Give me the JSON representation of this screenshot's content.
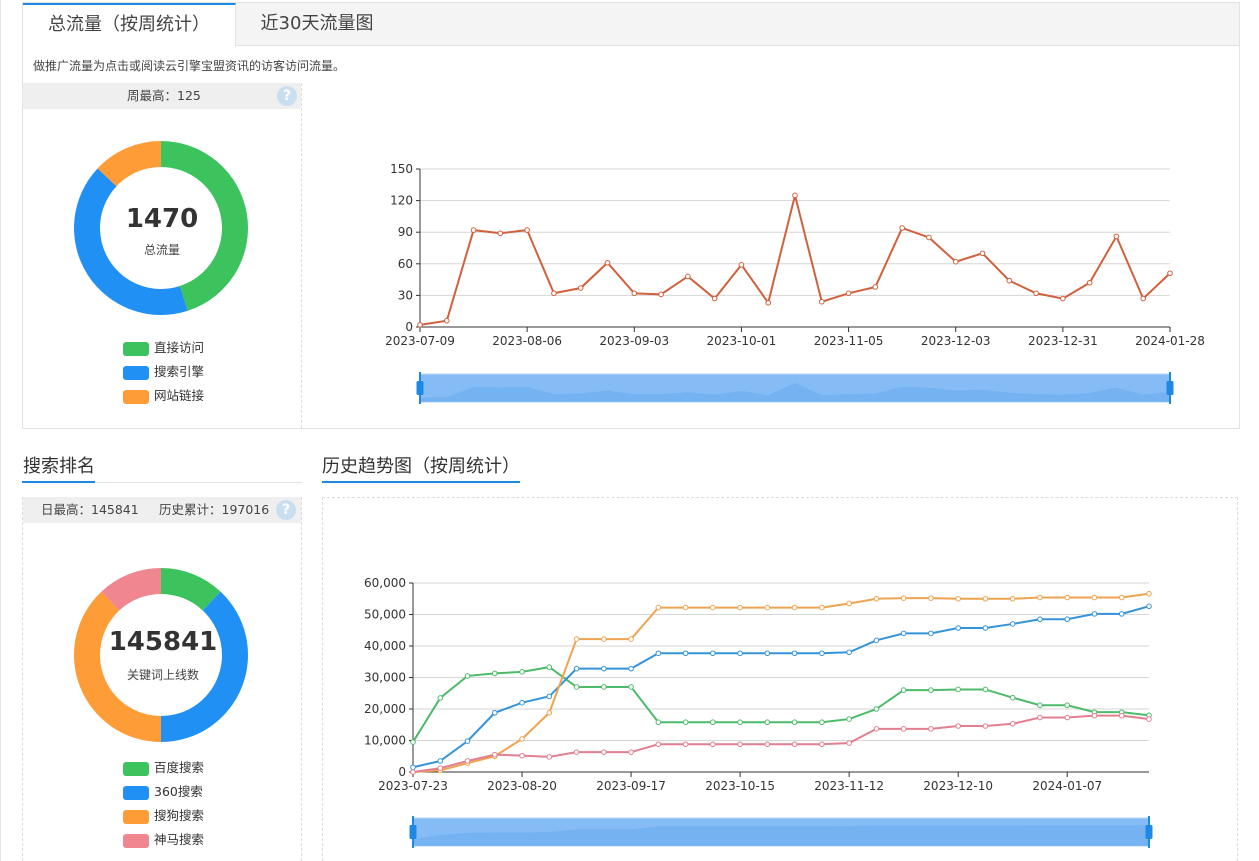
{
  "tabs": {
    "active": "总流量（按周统计）",
    "second": "近30天流量图"
  },
  "note": "做推广流量为点击或阅读云引擎宝盟资讯的访客访问流量。",
  "traffic": {
    "week_max": "周最高：125",
    "help_icon": "?",
    "total": "1470",
    "total_label": "总流量",
    "donut": [
      {
        "name": "直接访问",
        "value": 45,
        "color": "#3cc35e"
      },
      {
        "name": "搜索引擎",
        "value": 42,
        "color": "#2190f5"
      },
      {
        "name": "网站链接",
        "value": 13,
        "color": "#fe9c38"
      }
    ]
  },
  "search": {
    "title": "搜索排名",
    "day_max": "日最高：145841",
    "history_total": "历史累计：197016",
    "help_icon": "?",
    "total": "145841",
    "total_label": "关键词上线数",
    "donut": [
      {
        "name": "百度搜索",
        "value": 12,
        "color": "#3cc35e"
      },
      {
        "name": "360搜索",
        "value": 38,
        "color": "#2190f5"
      },
      {
        "name": "搜狗搜索",
        "value": 38,
        "color": "#fe9c38"
      },
      {
        "name": "神马搜索",
        "value": 12,
        "color": "#ef8690"
      }
    ]
  },
  "history": {
    "title": "历史趋势图（按周统计）"
  },
  "chart_data": [
    {
      "type": "line",
      "ylim": [
        0,
        150
      ],
      "yticks": [
        0,
        30,
        60,
        90,
        120,
        150
      ],
      "xtick_labels": [
        "2023-07-09",
        "2023-08-06",
        "2023-09-03",
        "2023-10-01",
        "2023-11-05",
        "2023-12-03",
        "2023-12-31",
        "2024-01-28"
      ],
      "xtick_index": [
        0,
        4,
        8,
        12,
        16,
        20,
        24,
        28
      ],
      "series": [
        {
          "color": "#d1603d",
          "values": [
            2,
            6,
            92,
            89,
            92,
            32,
            37,
            61,
            32,
            31,
            48,
            27,
            59,
            23,
            125,
            24,
            32,
            38,
            94,
            85,
            62,
            70,
            44,
            32,
            27,
            42,
            86,
            27,
            51
          ]
        }
      ],
      "grid": true
    },
    {
      "type": "line",
      "ylim": [
        0,
        60000
      ],
      "yticks": [
        0,
        10000,
        20000,
        30000,
        40000,
        50000,
        60000
      ],
      "ytick_labels": [
        "0",
        "10,000",
        "20,000",
        "30,000",
        "40,000",
        "50,000",
        "60,000"
      ],
      "xtick_labels": [
        "2023-07-23",
        "2023-08-20",
        "2023-09-17",
        "2023-10-15",
        "2023-11-12",
        "2023-12-10",
        "2024-01-07"
      ],
      "xtick_index": [
        0,
        4,
        8,
        12,
        16,
        20,
        24
      ],
      "series": [
        {
          "color": "#4cbb6a",
          "values": [
            9500,
            23500,
            30500,
            31300,
            31800,
            33300,
            27000,
            27000,
            27000,
            15800,
            15800,
            15800,
            15800,
            15800,
            15800,
            15800,
            16800,
            20000,
            26000,
            26000,
            26200,
            26200,
            23600,
            21200,
            21200,
            19000,
            19000,
            18000
          ]
        },
        {
          "color": "#3593da",
          "values": [
            1500,
            3500,
            9800,
            18800,
            22000,
            24000,
            32800,
            32800,
            32800,
            37700,
            37700,
            37700,
            37700,
            37700,
            37700,
            37700,
            38000,
            41800,
            44000,
            44000,
            45700,
            45700,
            47000,
            48500,
            48500,
            50200,
            50200,
            52600
          ]
        },
        {
          "color": "#efa350",
          "values": [
            0,
            500,
            2800,
            5000,
            10500,
            18800,
            42200,
            42200,
            42200,
            52200,
            52200,
            52200,
            52200,
            52200,
            52200,
            52200,
            53500,
            55000,
            55200,
            55200,
            55000,
            55000,
            55000,
            55400,
            55400,
            55400,
            55400,
            56600
          ]
        },
        {
          "color": "#e27f91",
          "values": [
            0,
            1200,
            3500,
            5500,
            5200,
            4800,
            6300,
            6300,
            6300,
            8800,
            8800,
            8800,
            8800,
            8800,
            8800,
            8800,
            9200,
            13700,
            13700,
            13700,
            14600,
            14600,
            15300,
            17300,
            17300,
            17900,
            17900,
            16800
          ]
        }
      ],
      "grid": true
    }
  ]
}
